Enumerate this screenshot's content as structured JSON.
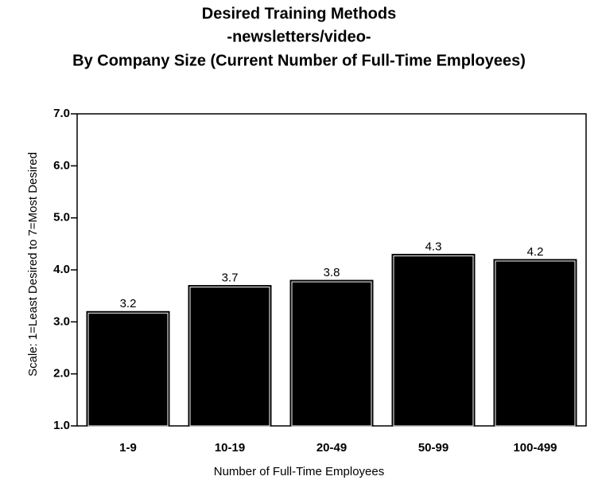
{
  "chart_data": {
    "type": "bar",
    "title": [
      "Desired Training Methods",
      "-newsletters/video-",
      "By Company Size (Current Number of Full-Time Employees)"
    ],
    "x_label": "Number of Full-Time Employees",
    "y_label": "Scale: 1=Least Desired to 7=Most Desired",
    "categories": [
      "1-9",
      "10-19",
      "20-49",
      "50-99",
      "100-499"
    ],
    "values": [
      3.2,
      3.7,
      3.8,
      4.3,
      4.2
    ],
    "color": "#000000",
    "ylim": [
      1,
      7
    ],
    "yticks": [
      {
        "value": 1,
        "label": "1.0"
      },
      {
        "value": 2,
        "label": "2.0"
      },
      {
        "value": 3,
        "label": "3.0"
      },
      {
        "value": 4,
        "label": "4.0"
      },
      {
        "value": 5,
        "label": "5.0"
      },
      {
        "value": 6,
        "label": "6.0"
      },
      {
        "value": 7,
        "label": "7.0"
      }
    ],
    "grid": false
  }
}
